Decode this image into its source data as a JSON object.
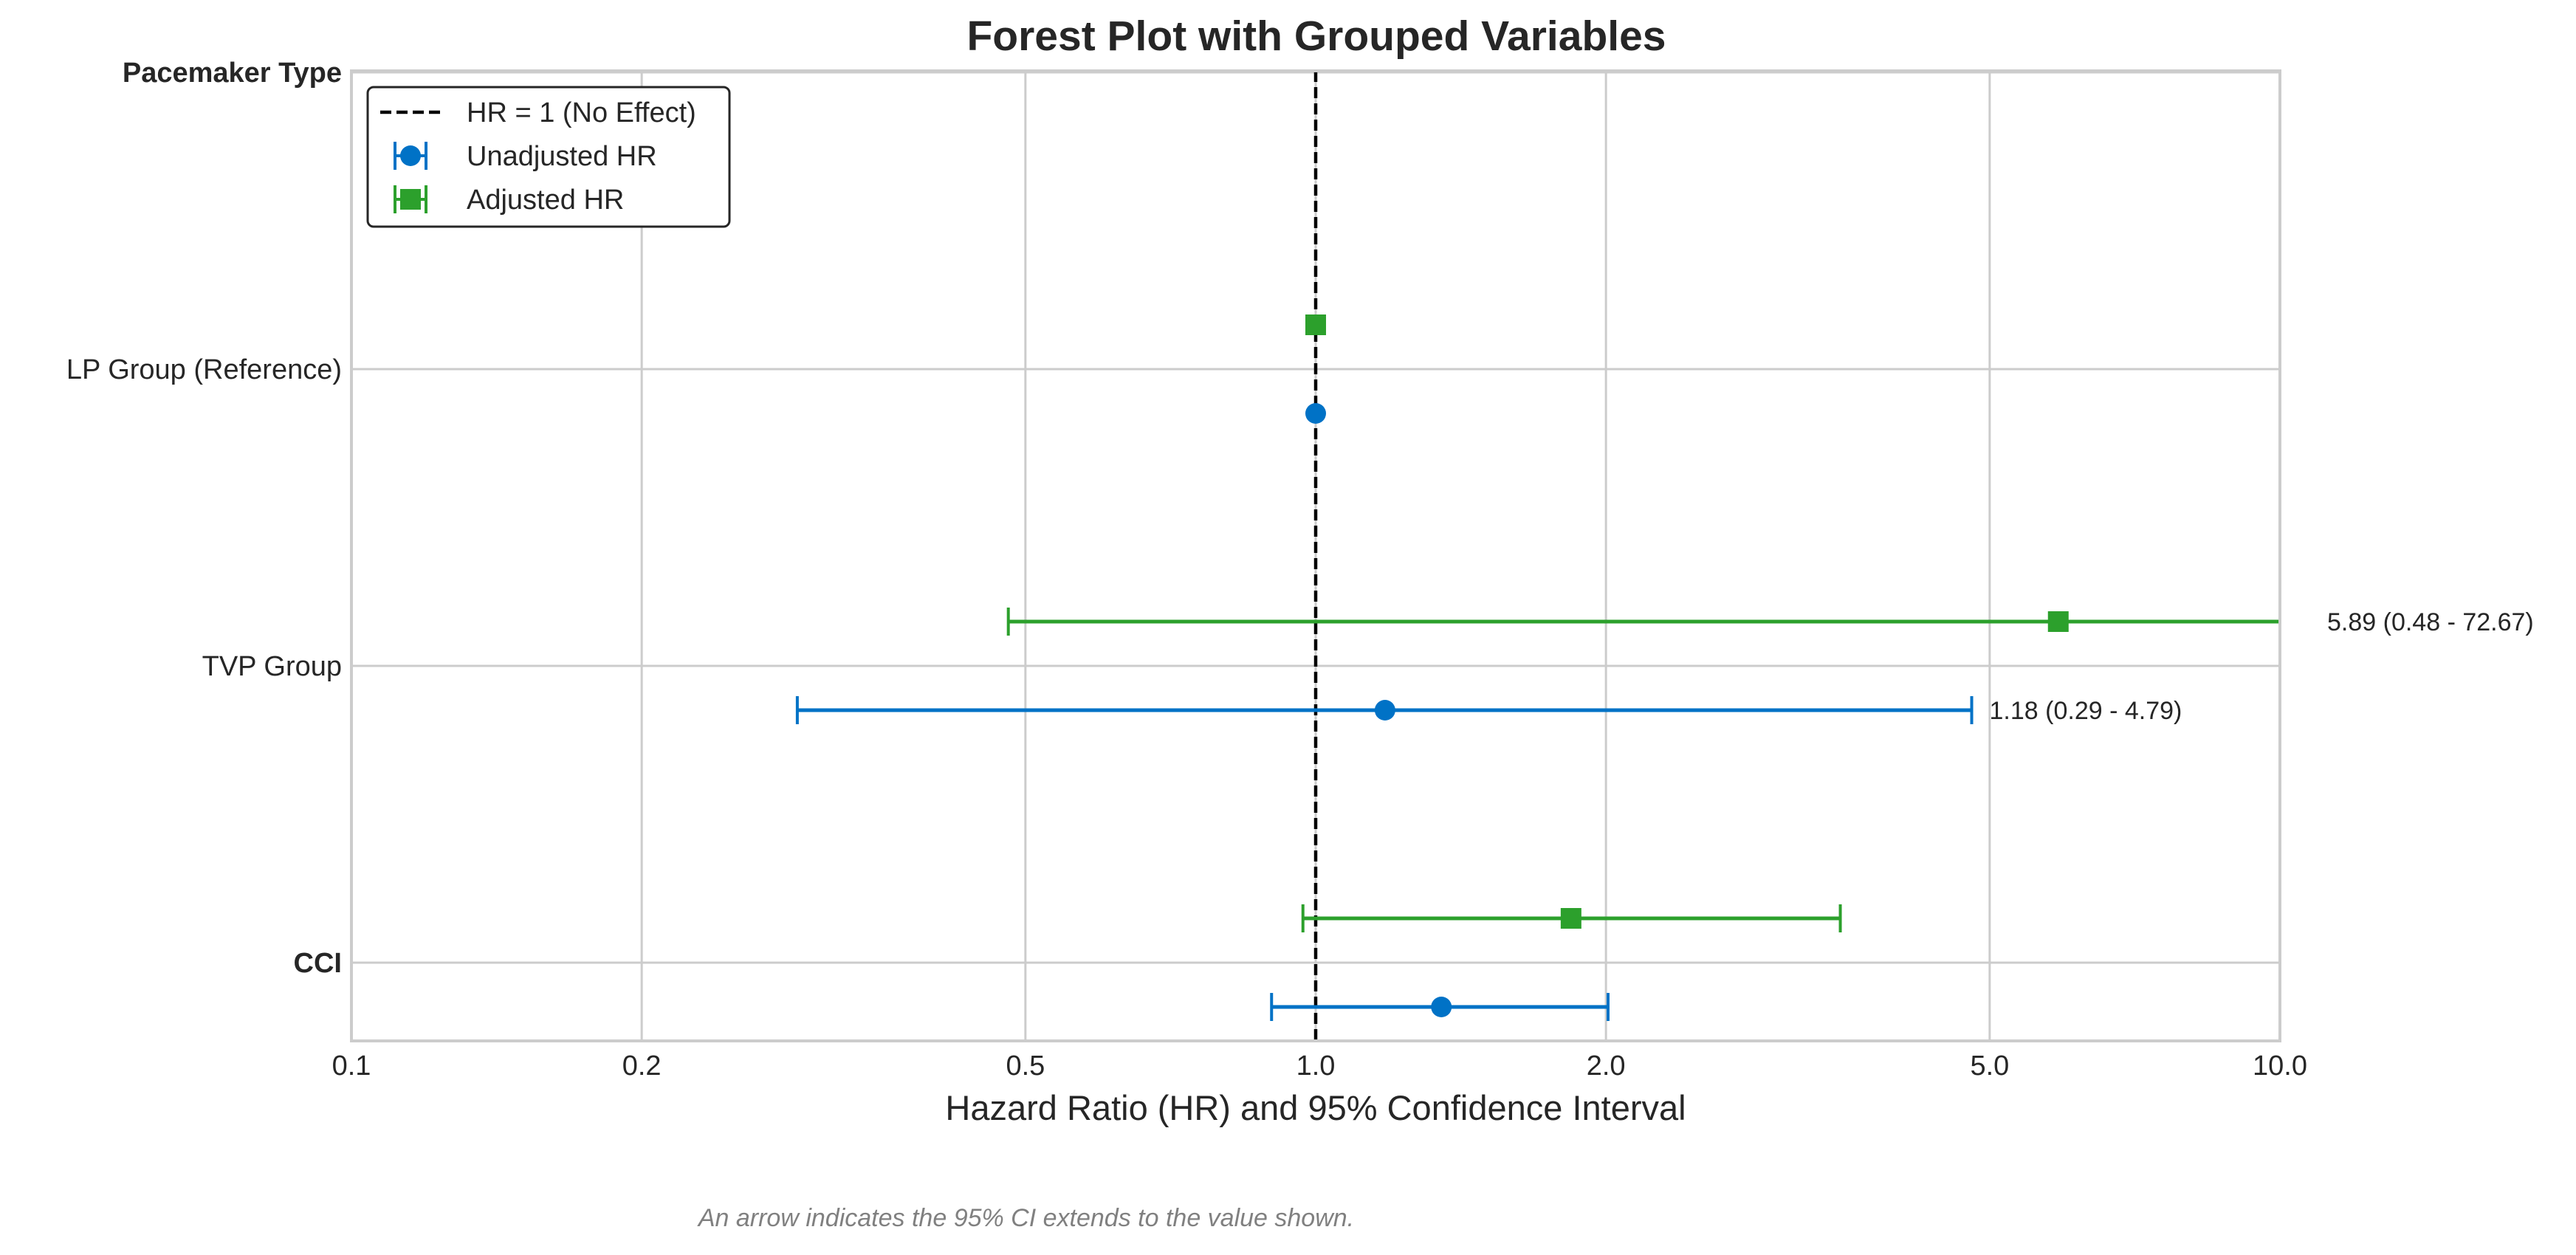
{
  "chart_data": {
    "type": "forest",
    "title": "Forest Plot with Grouped Variables",
    "xlabel": "Hazard Ratio (HR) and 95% Confidence Interval",
    "x_scale": "log",
    "xlim": [
      0.1,
      10.0
    ],
    "xticks": [
      0.1,
      0.2,
      0.5,
      1.0,
      2.0,
      5.0,
      10.0
    ],
    "xtick_labels": [
      "0.1",
      "0.2",
      "0.5",
      "1.0",
      "2.0",
      "5.0",
      "10.0"
    ],
    "reference_line": {
      "x": 1.0,
      "label": "HR = 1 (No Effect)",
      "style": "dashed",
      "color": "#000000"
    },
    "grid": true,
    "legend_position": "top-left",
    "rows": [
      {
        "label": "Pacemaker Type",
        "bold": true
      },
      {
        "label": "LP Group (Reference)",
        "bold": false
      },
      {
        "label": "TVP Group",
        "bold": false
      },
      {
        "label": "CCI",
        "bold": true
      }
    ],
    "series": [
      {
        "name": "Unadjusted HR",
        "marker": "circle",
        "color": "#0072C6",
        "points": [
          {
            "row": "LP Group (Reference)",
            "hr": 1.0,
            "lower": null,
            "upper": null,
            "annotation": ""
          },
          {
            "row": "TVP Group",
            "hr": 1.18,
            "lower": 0.29,
            "upper": 4.79,
            "annotation": "1.18 (0.29 - 4.79)"
          },
          {
            "row": "CCI",
            "hr": 1.35,
            "lower": 0.9,
            "upper": 2.01,
            "annotation": ""
          }
        ]
      },
      {
        "name": "Adjusted HR",
        "marker": "square",
        "color": "#2CA02C",
        "points": [
          {
            "row": "LP Group (Reference)",
            "hr": 1.0,
            "lower": null,
            "upper": null,
            "annotation": ""
          },
          {
            "row": "TVP Group",
            "hr": 5.89,
            "lower": 0.48,
            "upper": 72.67,
            "annotation": "5.89 (0.48 - 72.67)"
          },
          {
            "row": "CCI",
            "hr": 1.84,
            "lower": 0.97,
            "upper": 3.5,
            "annotation": ""
          }
        ]
      }
    ],
    "footnote": "An arrow indicates the 95% CI extends to the value shown."
  }
}
